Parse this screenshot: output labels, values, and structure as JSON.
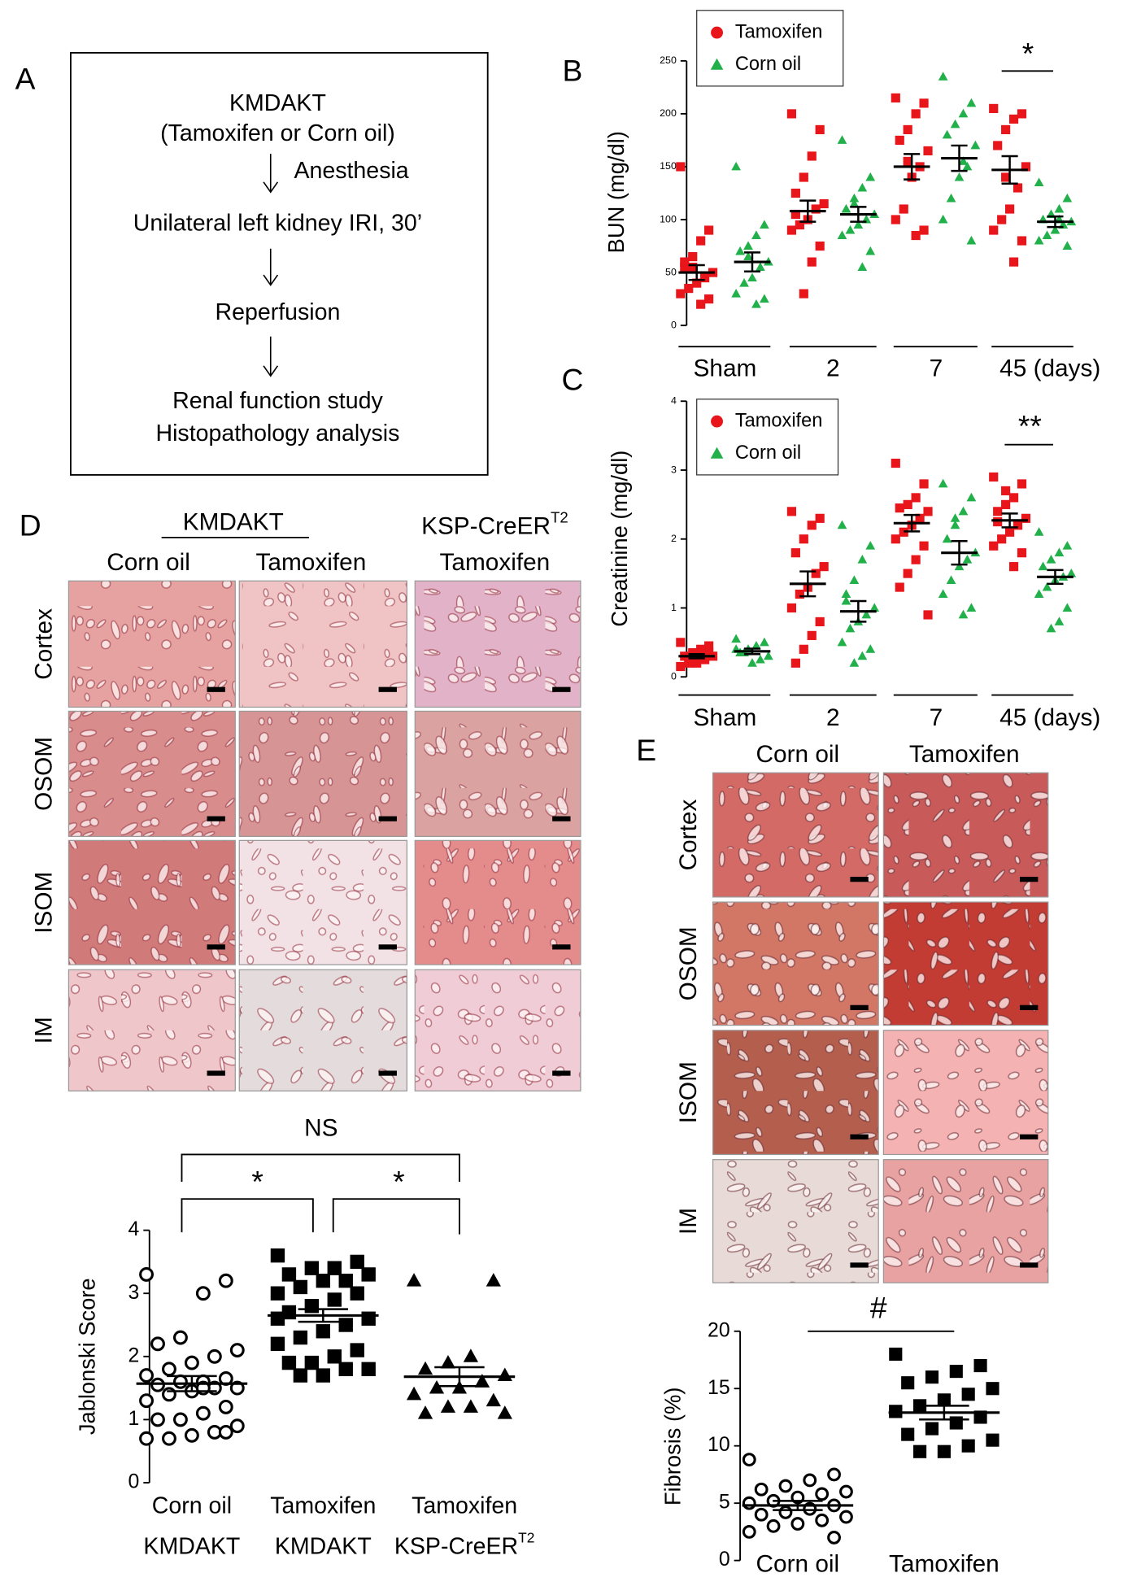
{
  "panel_labels": [
    "A",
    "B",
    "C",
    "D",
    "E"
  ],
  "flowchart": {
    "lines": [
      "KMDAKT",
      "(Tamoxifen or Corn oil)",
      "Unilateral left kidney IRI, 30’",
      "Reperfusion",
      "Renal function study",
      "Histopathology analysis"
    ],
    "side_note": "Anesthesia"
  },
  "histology_D": {
    "group_header": "KMDAKT",
    "columns": [
      {
        "text": "Corn oil"
      },
      {
        "text": "Tamoxifen"
      },
      {
        "header": "KSP-CreER",
        "sup": "T2",
        "text": "Tamoxifen"
      }
    ],
    "rows": [
      "Cortex",
      "OSOM",
      "ISOM",
      "IM"
    ]
  },
  "histology_E": {
    "columns": [
      "Corn oil",
      "Tamoxifen"
    ],
    "rows": [
      "Cortex",
      "OSOM",
      "ISOM",
      "IM"
    ]
  },
  "chart_data": [
    {
      "type": "dotplot",
      "y_label": "BUN (mg/dl)",
      "categories": [
        "Sham",
        "2",
        "7",
        "45 (days)"
      ],
      "ylim": [
        0,
        250
      ],
      "yticks": [
        0,
        50,
        100,
        150,
        200,
        250
      ],
      "legend": "top-left",
      "annotations": [
        "*"
      ],
      "series": [
        {
          "name": "Tamoxifen",
          "color": "#e8151b",
          "marker": "square",
          "values": [
            [
              150,
              90,
              80,
              65,
              55,
              50,
              45,
              40,
              35,
              30,
              25,
              20,
              55,
              60
            ],
            [
              200,
              185,
              160,
              140,
              125,
              115,
              110,
              100,
              95,
              90,
              75,
              60,
              30,
              105
            ],
            [
              215,
              210,
              200,
              185,
              175,
              165,
              150,
              140,
              110,
              100,
              90,
              85,
              155
            ],
            [
              205,
              200,
              195,
              185,
              170,
              150,
              130,
              110,
              100,
              90,
              80,
              60,
              140
            ]
          ],
          "mean": [
            50,
            108,
            150,
            147
          ],
          "sem": [
            7,
            10,
            12,
            13
          ]
        },
        {
          "name": "Corn oil",
          "color": "#22b04b",
          "marker": "triangle",
          "values": [
            [
              150,
              95,
              85,
              75,
              70,
              60,
              55,
              45,
              40,
              30,
              25,
              20,
              65
            ],
            [
              175,
              140,
              130,
              120,
              110,
              105,
              100,
              95,
              90,
              85,
              70,
              55,
              115
            ],
            [
              235,
              210,
              200,
              190,
              180,
              170,
              150,
              140,
              120,
              100,
              80,
              155
            ],
            [
              135,
              120,
              110,
              105,
              100,
              98,
              95,
              90,
              85,
              80,
              75,
              100
            ]
          ],
          "mean": [
            60,
            105,
            158,
            98
          ],
          "sem": [
            9,
            7,
            12,
            5
          ]
        }
      ]
    },
    {
      "type": "dotplot",
      "y_label": "Creatinine (mg/dl)",
      "categories": [
        "Sham",
        "2",
        "7",
        "45 (days)"
      ],
      "ylim": [
        0,
        4
      ],
      "yticks": [
        0,
        1,
        2,
        3,
        4
      ],
      "legend": "top-left",
      "annotations": [
        "**"
      ],
      "series": [
        {
          "name": "Tamoxifen",
          "color": "#e8151b",
          "marker": "square",
          "values": [
            [
              0.5,
              0.45,
              0.4,
              0.35,
              0.3,
              0.3,
              0.25,
              0.2,
              0.2,
              0.15,
              0.35,
              0.3
            ],
            [
              2.4,
              2.3,
              2.2,
              2.0,
              1.8,
              1.6,
              1.5,
              1.3,
              1.2,
              1.0,
              0.8,
              0.6,
              0.4,
              0.2
            ],
            [
              3.1,
              2.8,
              2.6,
              2.5,
              2.45,
              2.4,
              2.3,
              2.2,
              2.1,
              2.0,
              1.9,
              1.7,
              1.5,
              1.3,
              0.9
            ],
            [
              2.9,
              2.8,
              2.6,
              2.5,
              2.4,
              2.3,
              2.2,
              2.1,
              2.0,
              1.9,
              1.8,
              1.6,
              2.7,
              2.25
            ]
          ],
          "mean": [
            0.3,
            1.35,
            2.23,
            2.27
          ],
          "sem": [
            0.03,
            0.18,
            0.12,
            0.1
          ]
        },
        {
          "name": "Corn oil",
          "color": "#22b04b",
          "marker": "triangle",
          "values": [
            [
              0.55,
              0.5,
              0.45,
              0.4,
              0.35,
              0.3,
              0.25,
              0.2,
              0.35,
              0.4
            ],
            [
              2.2,
              1.9,
              1.7,
              1.4,
              1.2,
              1.0,
              0.9,
              0.8,
              0.7,
              0.5,
              0.4,
              0.3,
              0.2,
              1.1
            ],
            [
              2.8,
              2.6,
              2.4,
              2.2,
              2.0,
              1.8,
              1.7,
              1.6,
              1.4,
              1.2,
              1.0,
              0.9,
              2.3
            ],
            [
              2.1,
              1.9,
              1.8,
              1.7,
              1.6,
              1.5,
              1.45,
              1.4,
              1.3,
              1.2,
              1.0,
              0.8,
              0.7
            ]
          ],
          "mean": [
            0.37,
            0.95,
            1.8,
            1.45
          ],
          "sem": [
            0.04,
            0.15,
            0.17,
            0.1
          ]
        }
      ]
    },
    {
      "type": "dotplot",
      "y_label": "Jablonski Score",
      "categories": [
        {
          "text": "Corn oil",
          "group": "KMDAKT"
        },
        {
          "text": "Tamoxifen",
          "group": "KMDAKT"
        },
        {
          "text": "Tamoxifen",
          "group": "KSP-CreER",
          "group_sup": "T2"
        }
      ],
      "ylim": [
        0,
        4
      ],
      "yticks": [
        0,
        1,
        2,
        3,
        4
      ],
      "annotations": [
        "NS",
        "*",
        "*"
      ],
      "color": "#000000",
      "markers": [
        "open-circle",
        "square",
        "triangle"
      ],
      "values": [
        [
          3.3,
          3.2,
          3.0,
          2.3,
          2.2,
          2.1,
          2.0,
          1.9,
          1.8,
          1.7,
          1.65,
          1.6,
          1.6,
          1.55,
          1.5,
          1.5,
          1.45,
          1.4,
          1.3,
          1.2,
          1.1,
          1.0,
          1.0,
          0.9,
          0.8,
          0.75,
          0.7,
          0.7,
          0.8,
          1.5
        ],
        [
          3.6,
          3.5,
          3.4,
          3.4,
          3.3,
          3.3,
          3.2,
          3.2,
          3.1,
          3.0,
          3.0,
          2.9,
          2.8,
          2.7,
          2.6,
          2.5,
          2.4,
          2.3,
          2.2,
          2.1,
          2.0,
          1.9,
          1.9,
          1.8,
          1.8,
          1.7,
          1.7,
          2.6
        ],
        [
          3.2,
          3.2,
          2.0,
          1.9,
          1.8,
          1.7,
          1.6,
          1.5,
          1.5,
          1.4,
          1.3,
          1.2,
          1.2,
          1.1,
          1.1,
          1.6
        ]
      ],
      "mean": [
        1.57,
        2.65,
        1.68
      ],
      "sem": [
        0.12,
        0.1,
        0.15
      ]
    },
    {
      "type": "dotplot",
      "y_label": "Fibrosis (%)",
      "categories": [
        "Corn oil",
        "Tamoxifen"
      ],
      "ylim": [
        0,
        20
      ],
      "yticks": [
        0,
        5,
        10,
        15,
        20
      ],
      "annotations": [
        "#"
      ],
      "color": "#000000",
      "markers": [
        "open-circle",
        "square"
      ],
      "values": [
        [
          8.8,
          7.5,
          7,
          6.5,
          6.2,
          6,
          5.8,
          5.5,
          5.2,
          5,
          4.8,
          4.5,
          4.2,
          4,
          3.8,
          3.5,
          3.2,
          3,
          2.5,
          2,
          4.5
        ],
        [
          18,
          17,
          16.5,
          16,
          15.5,
          15,
          14.5,
          14,
          13.5,
          13,
          12.5,
          12,
          11.5,
          11,
          10.5,
          10,
          9.5,
          9.5,
          13
        ]
      ],
      "mean": [
        4.8,
        12.9
      ],
      "sem": [
        0.4,
        0.6
      ]
    }
  ]
}
